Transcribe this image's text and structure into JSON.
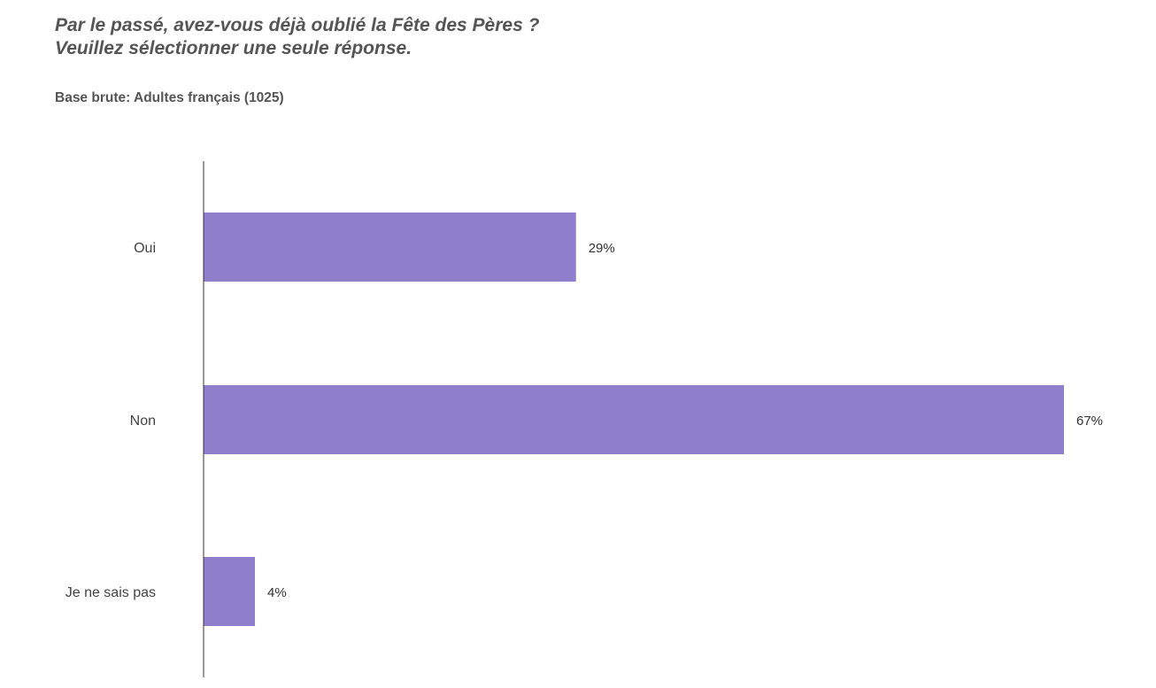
{
  "header": {
    "title_line1": "Par le passé, avez-vous déjà oublié la Fête des Pères ?",
    "title_line2": "Veuillez sélectionner une seule réponse.",
    "base": "Base brute: Adultes français (1025)"
  },
  "chart_data": {
    "type": "bar",
    "orientation": "horizontal",
    "categories": [
      "Oui",
      "Non",
      "Je ne sais pas"
    ],
    "values": [
      29,
      67,
      4
    ],
    "value_labels": [
      "29%",
      "67%",
      "4%"
    ],
    "unit": "%",
    "xlim": [
      0,
      67
    ],
    "grid": false,
    "legend": "none",
    "bar_color": "#8e7ecc",
    "axis_color": "#333333"
  }
}
